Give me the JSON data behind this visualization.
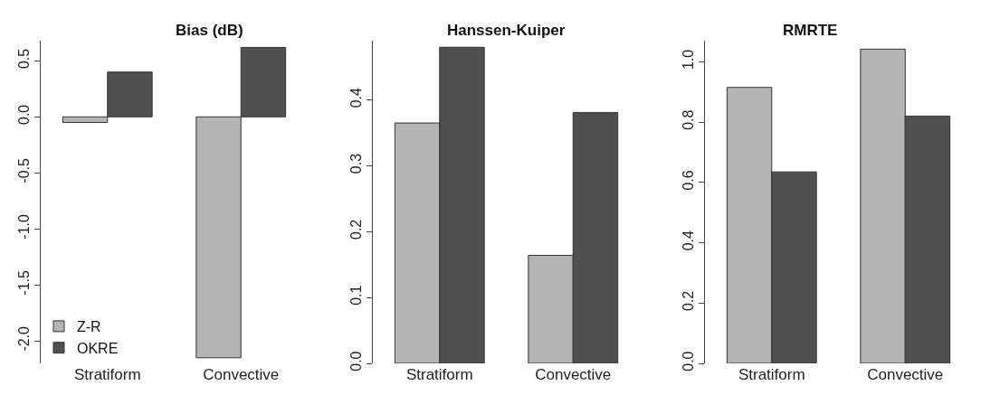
{
  "chart_data": [
    {
      "type": "bar",
      "title": "Bias (dB)",
      "categories": [
        "Stratiform",
        "Convective"
      ],
      "series": [
        {
          "name": "Z-R",
          "color": "#b4b4b4",
          "values": [
            -0.05,
            -2.15
          ]
        },
        {
          "name": "OKRE",
          "color": "#505050",
          "values": [
            0.4,
            0.62
          ]
        }
      ],
      "ylim": [
        -2.2,
        0.68
      ],
      "yticks": [
        {
          "value": -2.0,
          "label": "-2.0"
        },
        {
          "value": -1.5,
          "label": "-1.5"
        },
        {
          "value": -1.0,
          "label": "-1.0"
        },
        {
          "value": -0.5,
          "label": "-0.5"
        },
        {
          "value": 0.0,
          "label": "0.0"
        },
        {
          "value": 0.5,
          "label": "0.5"
        }
      ],
      "legend": "bottom left"
    },
    {
      "type": "bar",
      "title": "Hanssen-Kuiper",
      "categories": [
        "Stratiform",
        "Convective"
      ],
      "series": [
        {
          "color": "#b4b4b4",
          "values": [
            0.365,
            0.164
          ]
        },
        {
          "color": "#505050",
          "values": [
            0.48,
            0.381
          ]
        }
      ],
      "ylim": [
        0,
        0.49
      ],
      "yticks": [
        {
          "value": 0.0,
          "label": "0.0"
        },
        {
          "value": 0.1,
          "label": "0.1"
        },
        {
          "value": 0.2,
          "label": "0.2"
        },
        {
          "value": 0.3,
          "label": "0.3"
        },
        {
          "value": 0.4,
          "label": "0.4"
        }
      ],
      "legend": false
    },
    {
      "type": "bar",
      "title": "RMRTE",
      "categories": [
        "Stratiform",
        "Convective"
      ],
      "series": [
        {
          "color": "#b4b4b4",
          "values": [
            0.915,
            1.042
          ]
        },
        {
          "color": "#505050",
          "values": [
            0.635,
            0.82
          ]
        }
      ],
      "ylim": [
        0,
        1.07
      ],
      "yticks": [
        {
          "value": 0.0,
          "label": "0.0"
        },
        {
          "value": 0.2,
          "label": "0.2"
        },
        {
          "value": 0.4,
          "label": "0.4"
        },
        {
          "value": 0.6,
          "label": "0.6"
        },
        {
          "value": 0.8,
          "label": "0.8"
        },
        {
          "value": 1.0,
          "label": "1.0"
        }
      ],
      "legend": false
    }
  ]
}
